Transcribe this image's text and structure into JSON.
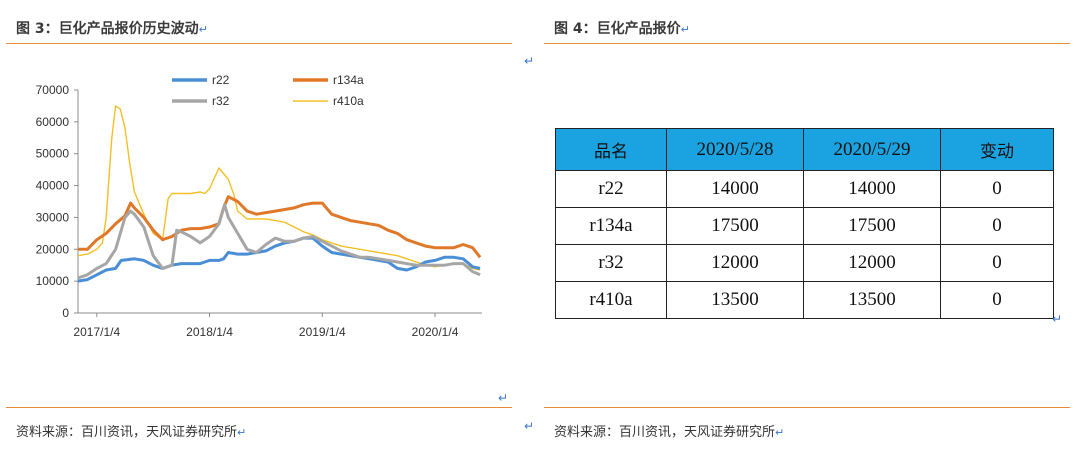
{
  "left": {
    "title": "图 3：巨化产品报价历史波动",
    "source": "资料来源：百川资讯，天风证券研究所"
  },
  "right": {
    "title": "图 4：巨化产品报价",
    "source": "资料来源：百川资讯，天风证券研究所",
    "table": {
      "headers": [
        "品名",
        "2020/5/28",
        "2020/5/29",
        "变动"
      ],
      "rows": [
        [
          "r22",
          "14000",
          "14000",
          "0"
        ],
        [
          "r134a",
          "17500",
          "17500",
          "0"
        ],
        [
          "r32",
          "12000",
          "12000",
          "0"
        ],
        [
          "r410a",
          "13500",
          "13500",
          "0"
        ]
      ]
    }
  },
  "return_mark": "↵",
  "chart_data": {
    "type": "line",
    "title": "",
    "xlabel": "",
    "ylabel": "",
    "ylim": [
      0,
      70000
    ],
    "yticks": [
      0,
      10000,
      20000,
      30000,
      40000,
      50000,
      60000,
      70000
    ],
    "xticks": [
      {
        "label": "2017/1/4",
        "x": 0
      },
      {
        "label": "2018/1/4",
        "x": 12
      },
      {
        "label": "2019/1/4",
        "x": 24
      },
      {
        "label": "2020/1/4",
        "x": 36
      }
    ],
    "xlim": [
      -2,
      41
    ],
    "legend": "top-center",
    "grid": false,
    "series": [
      {
        "name": "r22",
        "color": "#4a8fd6",
        "points": [
          [
            -2,
            10000
          ],
          [
            -1,
            10500
          ],
          [
            0,
            12000
          ],
          [
            1,
            13500
          ],
          [
            2,
            14000
          ],
          [
            2.6,
            16500
          ],
          [
            4,
            17000
          ],
          [
            5,
            16500
          ],
          [
            6,
            15000
          ],
          [
            7,
            14000
          ],
          [
            7.5,
            14500
          ],
          [
            8,
            15000
          ],
          [
            9,
            15500
          ],
          [
            10,
            15500
          ],
          [
            11,
            15500
          ],
          [
            11.5,
            16000
          ],
          [
            12,
            16500
          ],
          [
            13,
            16500
          ],
          [
            13.5,
            17000
          ],
          [
            14,
            19000
          ],
          [
            15,
            18500
          ],
          [
            16,
            18500
          ],
          [
            17,
            19000
          ],
          [
            18,
            19500
          ],
          [
            19,
            21000
          ],
          [
            20,
            22000
          ],
          [
            21,
            22500
          ],
          [
            22,
            23500
          ],
          [
            23,
            23500
          ],
          [
            24,
            21000
          ],
          [
            25,
            19000
          ],
          [
            26,
            18500
          ],
          [
            27,
            18000
          ],
          [
            28,
            17500
          ],
          [
            29,
            17000
          ],
          [
            30,
            16500
          ],
          [
            31,
            16000
          ],
          [
            32,
            14000
          ],
          [
            33,
            13500
          ],
          [
            34,
            14500
          ],
          [
            35,
            16000
          ],
          [
            36,
            16500
          ],
          [
            37,
            17500
          ],
          [
            38,
            17500
          ],
          [
            39,
            17000
          ],
          [
            40,
            14500
          ],
          [
            40.8,
            14000
          ]
        ]
      },
      {
        "name": "r134a",
        "color": "#e0782a",
        "points": [
          [
            -2,
            20000
          ],
          [
            -1,
            20000
          ],
          [
            0,
            23000
          ],
          [
            1,
            25000
          ],
          [
            2,
            28000
          ],
          [
            3,
            30500
          ],
          [
            3.6,
            34500
          ],
          [
            4,
            33000
          ],
          [
            5,
            30000
          ],
          [
            6,
            26000
          ],
          [
            7,
            23000
          ],
          [
            8,
            24000
          ],
          [
            9,
            26000
          ],
          [
            10,
            26500
          ],
          [
            11,
            26500
          ],
          [
            12,
            27000
          ],
          [
            13,
            28000
          ],
          [
            13.5,
            33000
          ],
          [
            14,
            36500
          ],
          [
            15,
            35000
          ],
          [
            16,
            32000
          ],
          [
            17,
            31000
          ],
          [
            18,
            31500
          ],
          [
            19,
            32000
          ],
          [
            20,
            32500
          ],
          [
            21,
            33000
          ],
          [
            22,
            34000
          ],
          [
            23,
            34500
          ],
          [
            24,
            34500
          ],
          [
            25,
            31000
          ],
          [
            26,
            30000
          ],
          [
            27,
            29000
          ],
          [
            28,
            28500
          ],
          [
            29,
            28000
          ],
          [
            30,
            27500
          ],
          [
            31,
            26000
          ],
          [
            32,
            25000
          ],
          [
            33,
            23000
          ],
          [
            34,
            22000
          ],
          [
            35,
            21000
          ],
          [
            36,
            20500
          ],
          [
            37,
            20500
          ],
          [
            38,
            20500
          ],
          [
            39,
            21500
          ],
          [
            40,
            20500
          ],
          [
            40.8,
            17500
          ]
        ]
      },
      {
        "name": "r32",
        "color": "#a6a6a6",
        "points": [
          [
            -2,
            11000
          ],
          [
            -1,
            12000
          ],
          [
            0,
            14000
          ],
          [
            1,
            15500
          ],
          [
            2,
            20000
          ],
          [
            3,
            30000
          ],
          [
            3.6,
            32000
          ],
          [
            4,
            31000
          ],
          [
            5,
            27000
          ],
          [
            6,
            18000
          ],
          [
            7,
            14000
          ],
          [
            8,
            15000
          ],
          [
            8.5,
            26000
          ],
          [
            9,
            25500
          ],
          [
            10,
            24000
          ],
          [
            11,
            22000
          ],
          [
            12,
            24000
          ],
          [
            13,
            28000
          ],
          [
            13.6,
            34000
          ],
          [
            14,
            30000
          ],
          [
            15,
            25000
          ],
          [
            16,
            20000
          ],
          [
            17,
            19000
          ],
          [
            18,
            21500
          ],
          [
            19,
            23500
          ],
          [
            20,
            22500
          ],
          [
            21,
            22500
          ],
          [
            22,
            23500
          ],
          [
            23,
            24000
          ],
          [
            24,
            22500
          ],
          [
            25,
            21000
          ],
          [
            26,
            19500
          ],
          [
            27,
            18500
          ],
          [
            28,
            17500
          ],
          [
            29,
            17500
          ],
          [
            30,
            17000
          ],
          [
            31,
            16500
          ],
          [
            32,
            16000
          ],
          [
            33,
            15500
          ],
          [
            34,
            15000
          ],
          [
            35,
            15000
          ],
          [
            36,
            15000
          ],
          [
            37,
            15000
          ],
          [
            38,
            15500
          ],
          [
            39,
            15500
          ],
          [
            40,
            13000
          ],
          [
            40.8,
            12000
          ]
        ]
      },
      {
        "name": "r410a",
        "color": "#f2c027",
        "points": [
          [
            -2,
            18000
          ],
          [
            -1,
            18500
          ],
          [
            0,
            20000
          ],
          [
            0.6,
            22000
          ],
          [
            1,
            30000
          ],
          [
            1.6,
            55000
          ],
          [
            2,
            65000
          ],
          [
            2.5,
            64000
          ],
          [
            3,
            58000
          ],
          [
            3.5,
            47000
          ],
          [
            4,
            38000
          ],
          [
            5,
            31000
          ],
          [
            6,
            25000
          ],
          [
            7,
            23000
          ],
          [
            7.6,
            36000
          ],
          [
            8,
            37500
          ],
          [
            9,
            37500
          ],
          [
            10,
            37500
          ],
          [
            11,
            38000
          ],
          [
            11.5,
            37500
          ],
          [
            12,
            39000
          ],
          [
            13,
            45500
          ],
          [
            14,
            42000
          ],
          [
            14.6,
            37000
          ],
          [
            15,
            32000
          ],
          [
            16,
            29500
          ],
          [
            17,
            29500
          ],
          [
            18,
            29500
          ],
          [
            19,
            29000
          ],
          [
            20,
            28500
          ],
          [
            21,
            27000
          ],
          [
            22,
            25500
          ],
          [
            23,
            24500
          ],
          [
            24,
            23000
          ],
          [
            25,
            22000
          ],
          [
            26,
            21000
          ],
          [
            27,
            20500
          ],
          [
            28,
            20000
          ],
          [
            29,
            19500
          ],
          [
            30,
            19000
          ],
          [
            31,
            18500
          ],
          [
            32,
            18000
          ],
          [
            33,
            17000
          ],
          [
            34,
            16000
          ],
          [
            35,
            15000
          ],
          [
            36,
            14500
          ],
          [
            37,
            15000
          ],
          [
            38,
            15500
          ],
          [
            39,
            15500
          ],
          [
            40,
            14000
          ],
          [
            40.8,
            13500
          ]
        ]
      }
    ]
  }
}
